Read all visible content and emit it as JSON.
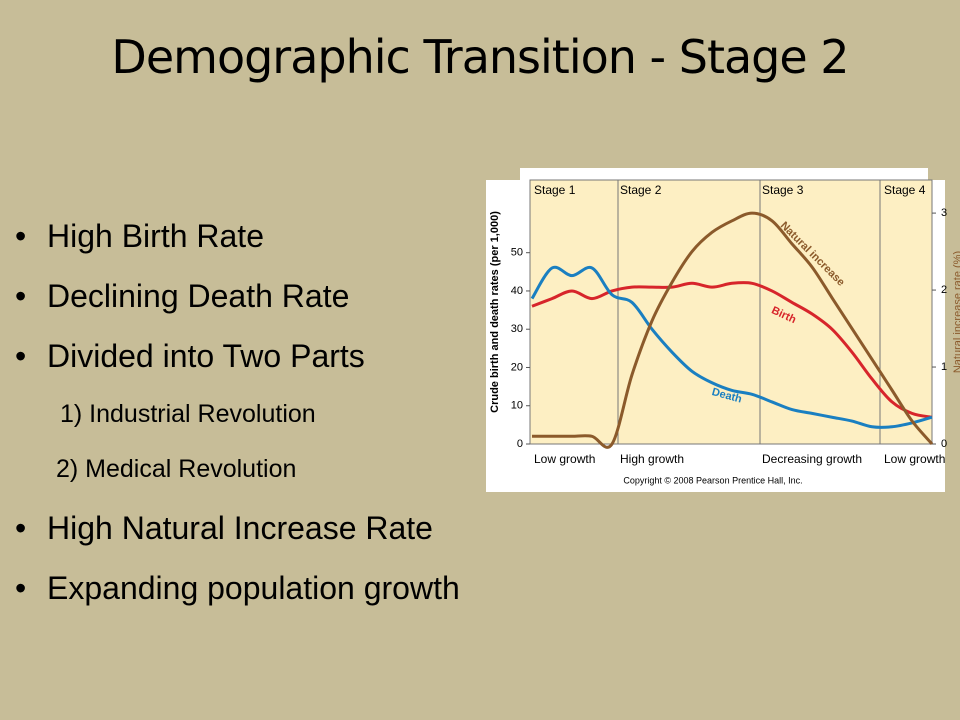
{
  "slide": {
    "title": "Demographic Transition - Stage 2",
    "bullets": [
      "High Birth Rate",
      "Declining Death Rate",
      "Divided into Two Parts"
    ],
    "sub_items": [
      "1) Industrial Revolution",
      "2) Medical Revolution"
    ],
    "bullets_after": [
      "High Natural Increase Rate",
      "Expanding population growth"
    ]
  },
  "chart_data": {
    "type": "line",
    "ylabel": "Crude birth and death rates (per 1,000)",
    "y2label": "Natural increase rate (%)",
    "stages": [
      "Stage 1",
      "Stage 2",
      "Stage 3",
      "Stage 4"
    ],
    "growth": [
      "Low growth",
      "High growth",
      "Decreasing growth",
      "Low growth"
    ],
    "credit": "Copyright © 2008 Pearson Prentice Hall, Inc.",
    "categories": [
      null,
      null,
      null,
      null,
      null,
      null,
      null,
      null,
      null,
      null,
      null,
      null,
      null,
      null,
      null,
      null,
      null,
      null,
      null,
      null,
      null
    ],
    "ylim": [
      0,
      69
    ],
    "yticks": [
      0,
      10,
      20,
      30,
      40,
      50
    ],
    "y2lim": [
      0,
      3.43
    ],
    "y2ticks": [
      0,
      1,
      2,
      3
    ],
    "series": [
      {
        "name": "Birth",
        "color": "#d7252b",
        "values": [
          36,
          38,
          40,
          38,
          40,
          41,
          41,
          41,
          42,
          41,
          42,
          42,
          40,
          37,
          34,
          30,
          24,
          17,
          11,
          8,
          7
        ]
      },
      {
        "name": "Death",
        "color": "#1a7fc1",
        "values": [
          38,
          46,
          44,
          46,
          39,
          37,
          30,
          24,
          19,
          16,
          14,
          13,
          11,
          9,
          8,
          7,
          6,
          4.5,
          4.5,
          5.5,
          7
        ]
      },
      {
        "name": "Natural increase",
        "color": "#8b5a2b",
        "axis": "y2",
        "values": [
          0.1,
          0.1,
          0.1,
          0.1,
          0,
          0.9,
          1.6,
          2.1,
          2.5,
          2.75,
          2.9,
          3,
          2.9,
          2.6,
          2.3,
          1.9,
          1.5,
          1.1,
          0.7,
          0.3,
          0
        ]
      }
    ]
  }
}
